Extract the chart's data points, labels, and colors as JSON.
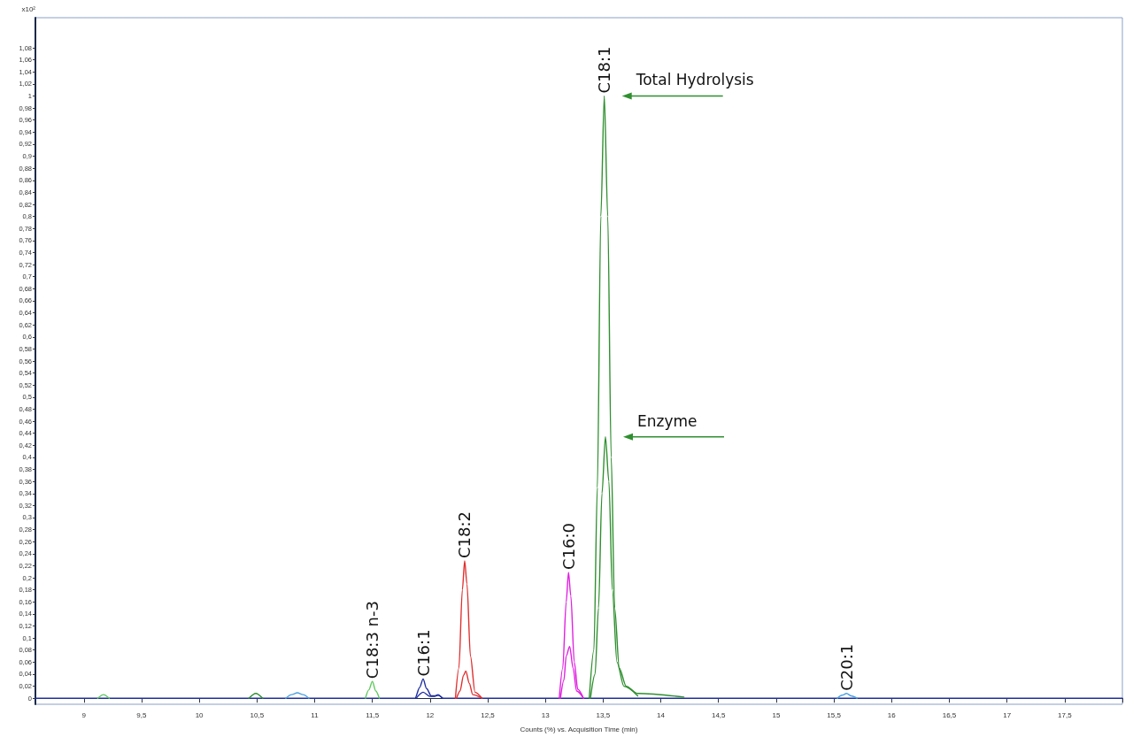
{
  "chart_data": {
    "type": "line",
    "xlabel": "Counts (%) vs. Acquisition Time (min)",
    "ylabel": "x10²",
    "xlim": [
      8.58,
      18
    ],
    "ylim": [
      -0.01,
      1.13
    ],
    "xticks": [
      9,
      {
        "value": 9.5,
        "label": "9,5"
      },
      10,
      {
        "value": 10.5,
        "label": "10,5"
      },
      11,
      {
        "value": 11.5,
        "label": "11,5"
      },
      12,
      {
        "value": 12.5,
        "label": "12,5"
      },
      13,
      {
        "value": 13.5,
        "label": "13,5"
      },
      14,
      {
        "value": 14.5,
        "label": "14,5"
      },
      15,
      {
        "value": 15.5,
        "label": "15,5"
      },
      16,
      {
        "value": 16.5,
        "label": "16,5"
      },
      17,
      {
        "value": 17.5,
        "label": "17,5"
      },
      {
        "value": 18,
        "label": null
      }
    ],
    "yticks": [
      0,
      {
        "value": 0.02,
        "label": "0,02"
      },
      {
        "value": 0.04,
        "label": "0,04"
      },
      {
        "value": 0.06,
        "label": "0,06"
      },
      {
        "value": 0.08,
        "label": "0,08"
      },
      {
        "value": 0.1,
        "label": "0,1"
      },
      {
        "value": 0.12,
        "label": "0,12"
      },
      {
        "value": 0.14,
        "label": "0,14"
      },
      {
        "value": 0.16,
        "label": "0,16"
      },
      {
        "value": 0.18,
        "label": "0,18"
      },
      {
        "value": 0.2,
        "label": "0,2"
      },
      {
        "value": 0.22,
        "label": "0,22"
      },
      {
        "value": 0.24,
        "label": "0,24"
      },
      {
        "value": 0.26,
        "label": "0,26"
      },
      {
        "value": 0.28,
        "label": "0,28"
      },
      {
        "value": 0.3,
        "label": "0,3"
      },
      {
        "value": 0.32,
        "label": "0,32"
      },
      {
        "value": 0.34,
        "label": "0,34"
      },
      {
        "value": 0.36,
        "label": "0,36"
      },
      {
        "value": 0.38,
        "label": "0,38"
      },
      {
        "value": 0.4,
        "label": "0,4"
      },
      {
        "value": 0.42,
        "label": "0,42"
      },
      {
        "value": 0.44,
        "label": "0,44"
      },
      {
        "value": 0.46,
        "label": "0,46"
      },
      {
        "value": 0.48,
        "label": "0,48"
      },
      {
        "value": 0.5,
        "label": "0,5"
      },
      {
        "value": 0.52,
        "label": "0,52"
      },
      {
        "value": 0.54,
        "label": "0,54"
      },
      {
        "value": 0.56,
        "label": "0,56"
      },
      {
        "value": 0.58,
        "label": "0,58"
      },
      {
        "value": 0.6,
        "label": "0,6"
      },
      {
        "value": 0.62,
        "label": "0,62"
      },
      {
        "value": 0.64,
        "label": "0,64"
      },
      {
        "value": 0.66,
        "label": "0,66"
      },
      {
        "value": 0.68,
        "label": "0,68"
      },
      {
        "value": 0.7,
        "label": "0,7"
      },
      {
        "value": 0.72,
        "label": "0,72"
      },
      {
        "value": 0.74,
        "label": "0,74"
      },
      {
        "value": 0.76,
        "label": "0,76"
      },
      {
        "value": 0.78,
        "label": "0,78"
      },
      {
        "value": 0.8,
        "label": "0,8"
      },
      {
        "value": 0.82,
        "label": "0,82"
      },
      {
        "value": 0.84,
        "label": "0,84"
      },
      {
        "value": 0.86,
        "label": "0,86"
      },
      {
        "value": 0.88,
        "label": "0,88"
      },
      {
        "value": 0.9,
        "label": "0,9"
      },
      {
        "value": 0.92,
        "label": "0,92"
      },
      {
        "value": 0.94,
        "label": "0,94"
      },
      {
        "value": 0.96,
        "label": "0,96"
      },
      {
        "value": 0.98,
        "label": "0,98"
      },
      1,
      {
        "value": 1.02,
        "label": "1,02"
      },
      {
        "value": 1.04,
        "label": "1,04"
      },
      {
        "value": 1.06,
        "label": "1,06"
      },
      {
        "value": 1.08,
        "label": "1,08"
      }
    ],
    "grid": false,
    "legend": false,
    "marker": "none",
    "line_style": "solid",
    "series": [
      {
        "name": "C18:1",
        "color": "#2f8f2f",
        "x": [
          13.38,
          13.42,
          13.45,
          13.48,
          13.51,
          13.54,
          13.57,
          13.6,
          13.64,
          13.7,
          13.8,
          14.2
        ],
        "values": [
          0,
          0.08,
          0.35,
          0.8,
          1.0,
          0.8,
          0.4,
          0.15,
          0.05,
          0.02,
          0.008,
          0.002
        ]
      },
      {
        "color": "#2f8f2f",
        "x": [
          13.39,
          13.43,
          13.46,
          13.49,
          13.52,
          13.55,
          13.58,
          13.62,
          13.68,
          13.8
        ],
        "values": [
          0,
          0.04,
          0.15,
          0.34,
          0.434,
          0.36,
          0.18,
          0.06,
          0.02,
          0.004
        ]
      },
      {
        "color": "#2f8f2f",
        "x": [
          10.43,
          10.49,
          10.55
        ],
        "values": [
          0,
          0.008,
          0
        ]
      },
      {
        "name": "C16:0",
        "color": "#e020e0",
        "x": [
          13.12,
          13.15,
          13.18,
          13.2,
          13.22,
          13.25,
          13.28,
          13.33
        ],
        "values": [
          0,
          0.05,
          0.16,
          0.209,
          0.17,
          0.06,
          0.015,
          0
        ]
      },
      {
        "color": "#e020e0",
        "x": [
          13.13,
          13.16,
          13.18,
          13.21,
          13.24,
          13.27,
          13.33
        ],
        "values": [
          0,
          0.03,
          0.07,
          0.086,
          0.05,
          0.012,
          0
        ]
      },
      {
        "name": "C18:2",
        "color": "#e03030",
        "x": [
          12.22,
          12.25,
          12.28,
          12.3,
          12.32,
          12.35,
          12.39,
          12.45
        ],
        "values": [
          0,
          0.05,
          0.18,
          0.228,
          0.19,
          0.07,
          0.01,
          0
        ]
      },
      {
        "color": "#e03030",
        "x": [
          12.23,
          12.26,
          12.29,
          12.31,
          12.34,
          12.37,
          12.45
        ],
        "values": [
          0,
          0.012,
          0.038,
          0.045,
          0.025,
          0.006,
          0
        ]
      },
      {
        "name": "C18:3 n-3",
        "color": "#5cc85c",
        "x": [
          11.44,
          11.47,
          11.5,
          11.53,
          11.56
        ],
        "values": [
          0,
          0.014,
          0.028,
          0.012,
          0
        ]
      },
      {
        "color": "#5cc85c",
        "x": [
          9.12,
          9.17,
          9.22
        ],
        "values": [
          0,
          0.006,
          0
        ]
      },
      {
        "name": "C20:1",
        "color": "#4aa0e0",
        "x": [
          15.53,
          15.57,
          15.61,
          15.65,
          15.7
        ],
        "values": [
          0,
          0.005,
          0.008,
          0.004,
          0
        ]
      },
      {
        "color": "#4aa0e0",
        "x": [
          10.75,
          10.8,
          10.85,
          10.9,
          10.95
        ],
        "values": [
          0,
          0.006,
          0.009,
          0.006,
          0
        ]
      },
      {
        "color": "#1f2f9f",
        "x": [
          11.88,
          11.94,
          12.0,
          12.04,
          12.07,
          12.11
        ],
        "values": [
          0,
          0.01,
          0.003,
          0.003,
          0.005,
          0
        ]
      },
      {
        "name": "C16:1",
        "color": "#1f2f9f",
        "x": [
          8.58,
          11.87,
          11.91,
          11.94,
          11.97,
          12.01,
          12.04,
          12.07,
          12.11,
          18
        ],
        "values": [
          0,
          0,
          0.018,
          0.032,
          0.016,
          0.004,
          0.004,
          0.006,
          0,
          0
        ]
      }
    ],
    "annotations": [
      {
        "text": "Total Hydrolysis",
        "x": 13.51,
        "y": 1.0
      },
      {
        "text": "Enzyme",
        "x": 13.52,
        "y": 0.434
      }
    ]
  }
}
